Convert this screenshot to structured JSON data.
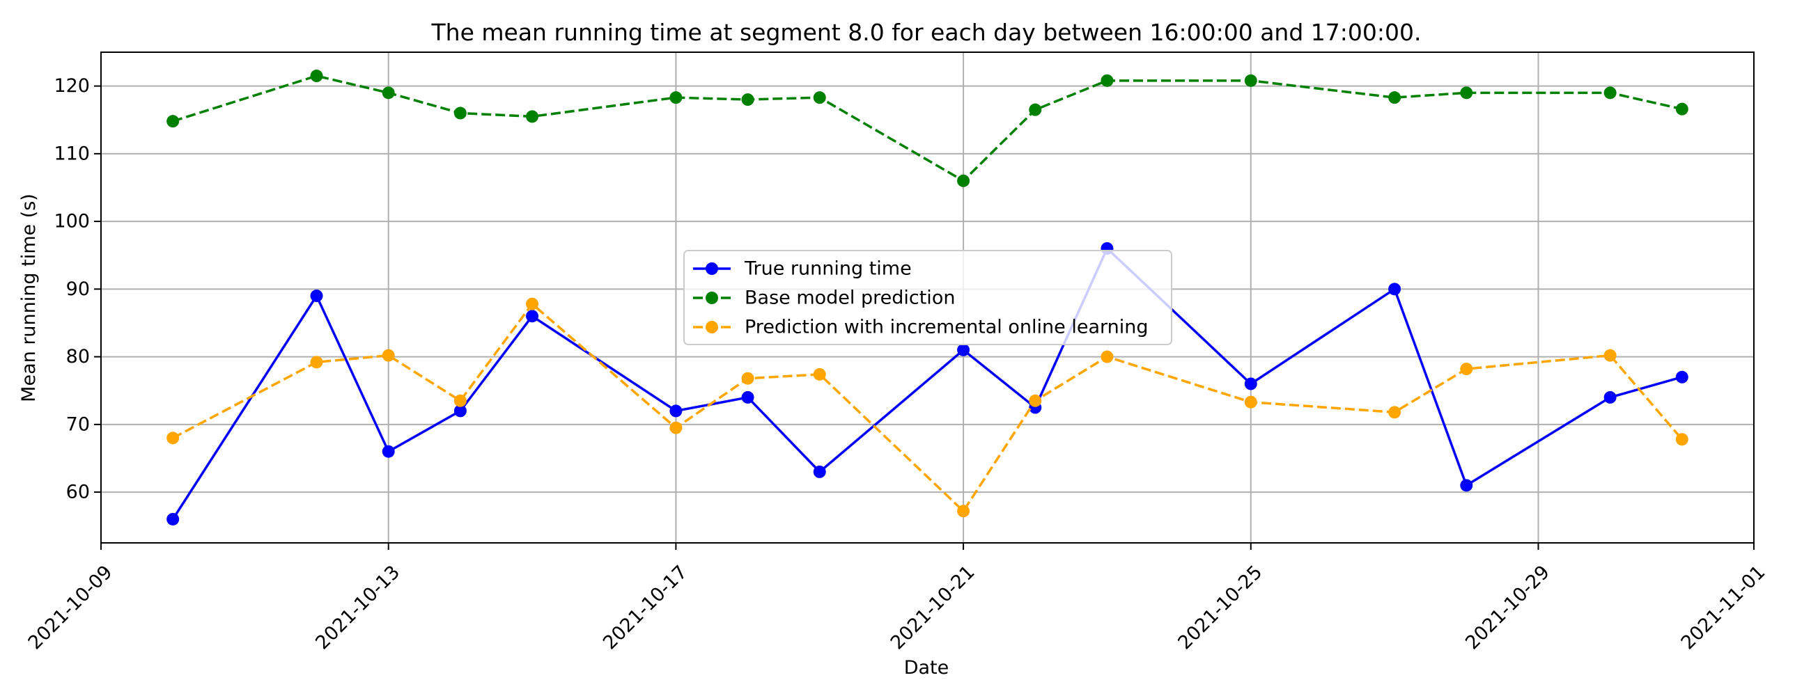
{
  "chart_data": {
    "type": "line",
    "title": "The mean running time at segment 8.0 for each day between 16:00:00 and 17:00:00.",
    "xlabel": "Date",
    "ylabel": "Mean running time (s)",
    "x_axis_type": "date",
    "xlim": [
      "2021-10-09",
      "2021-11-01"
    ],
    "ylim": [
      52.5,
      125
    ],
    "x_ticks": [
      "2021-10-09",
      "2021-10-13",
      "2021-10-17",
      "2021-10-21",
      "2021-10-25",
      "2021-10-29",
      "2021-11-01"
    ],
    "y_ticks": [
      60,
      70,
      80,
      90,
      100,
      110,
      120
    ],
    "grid": true,
    "legend_position": "center",
    "x": [
      "2021-10-10",
      "2021-10-12",
      "2021-10-13",
      "2021-10-14",
      "2021-10-15",
      "2021-10-17",
      "2021-10-18",
      "2021-10-19",
      "2021-10-21",
      "2021-10-22",
      "2021-10-23",
      "2021-10-25",
      "2021-10-27",
      "2021-10-28",
      "2021-10-30",
      "2021-10-31"
    ],
    "series": [
      {
        "name": "True running time",
        "color": "#0000ff",
        "line_style": "solid",
        "values": [
          56,
          89,
          66,
          72,
          86,
          72,
          74,
          63,
          81,
          72.5,
          96,
          76,
          90,
          61,
          74,
          77
        ]
      },
      {
        "name": "Base model prediction",
        "color": "#008000",
        "line_style": "dashed",
        "values": [
          114.8,
          121.5,
          119,
          116,
          115.5,
          118.3,
          118,
          118.3,
          106,
          116.5,
          120.8,
          120.8,
          118.3,
          119,
          119,
          116.6
        ]
      },
      {
        "name": "Prediction with incremental online learning",
        "color": "#ffa500",
        "line_style": "dashed",
        "values": [
          68,
          79.2,
          80.2,
          73.5,
          87.8,
          69.5,
          76.8,
          77.4,
          57.2,
          73.5,
          80,
          73.3,
          71.8,
          78.2,
          80.2,
          67.8
        ]
      }
    ]
  }
}
